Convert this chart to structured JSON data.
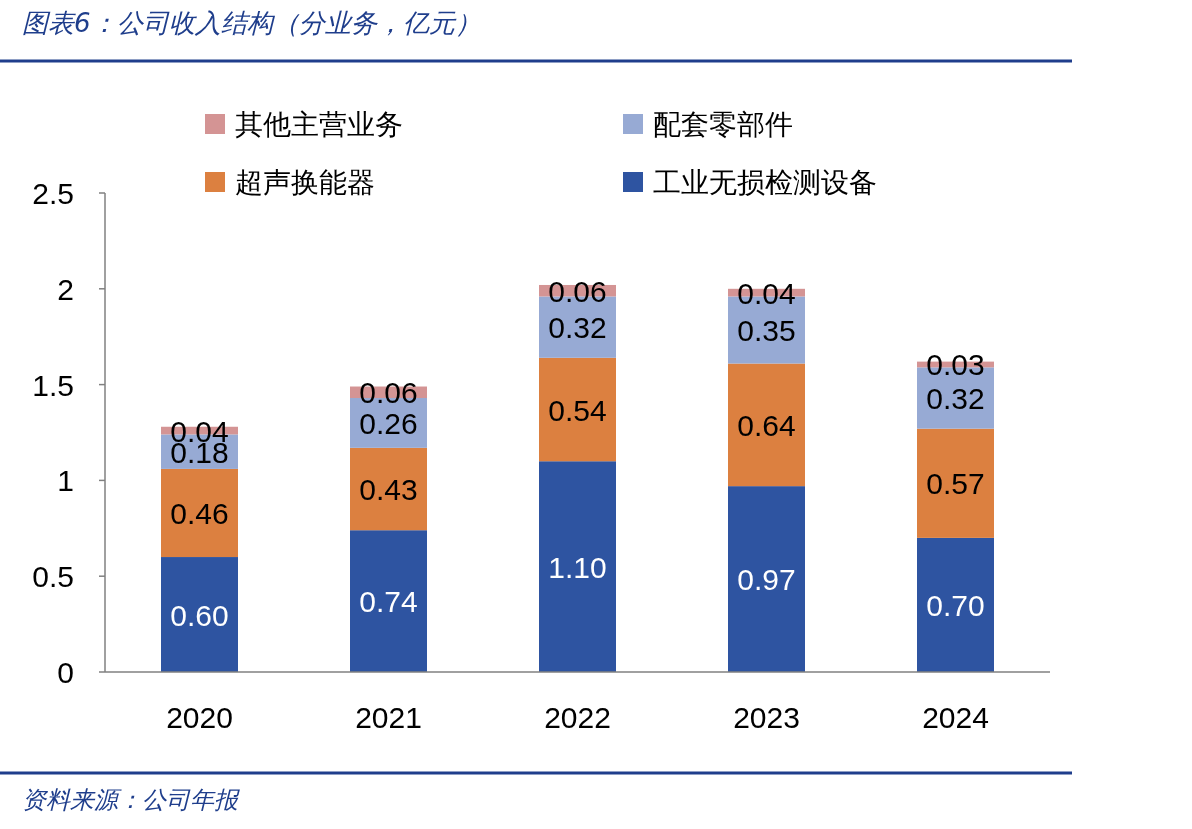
{
  "chart_data": {
    "type": "bar",
    "stacked": true,
    "title": "图表6：公司收入结构（分业务，亿元）",
    "categories": [
      "2020",
      "2021",
      "2022",
      "2023",
      "2024"
    ],
    "series": [
      {
        "name": "工业无损检测设备",
        "color": "#2e54a1",
        "values": [
          0.6,
          0.74,
          1.1,
          0.97,
          0.7
        ],
        "value_labels": [
          "0.60",
          "0.74",
          "1.10",
          "0.97",
          "0.70"
        ]
      },
      {
        "name": "超声换能器",
        "color": "#dc8040",
        "values": [
          0.46,
          0.43,
          0.54,
          0.64,
          0.57
        ],
        "value_labels": [
          "0.46",
          "0.43",
          "0.54",
          "0.64",
          "0.57"
        ]
      },
      {
        "name": "配套零部件",
        "color": "#97aad4",
        "values": [
          0.18,
          0.26,
          0.32,
          0.35,
          0.32
        ],
        "value_labels": [
          "0.18",
          "0.26",
          "0.32",
          "0.35",
          "0.32"
        ]
      },
      {
        "name": "其他主营业务",
        "color": "#d49494",
        "values": [
          0.04,
          0.06,
          0.06,
          0.04,
          0.03
        ],
        "value_labels": [
          "0.04",
          "0.06",
          "0.06",
          "0.04",
          "0.03"
        ]
      }
    ],
    "ylim": [
      0,
      2.5
    ],
    "yticks": [
      0,
      {
        "value": 0.5,
        "label": "0.5"
      },
      1,
      {
        "value": 1.5,
        "label": "1.5"
      },
      2,
      {
        "value": 2.5,
        "label": "2.5"
      }
    ],
    "legend": "top",
    "annotations": [
      "资料来源：公司年报"
    ]
  }
}
